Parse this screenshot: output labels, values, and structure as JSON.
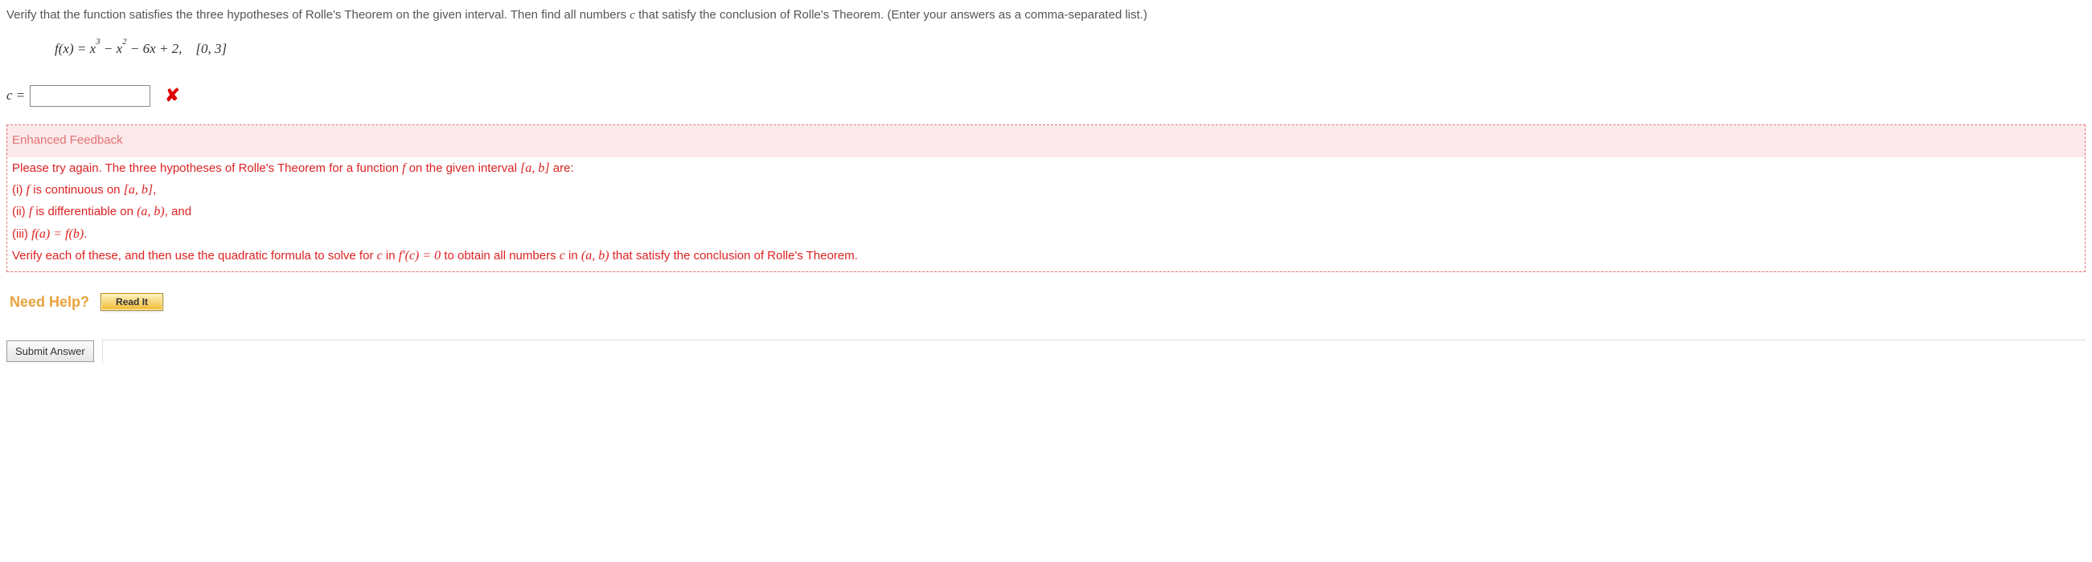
{
  "problem": {
    "text_line1": "Verify that the function satisfies the three hypotheses of Rolle's Theorem on the given interval. Then find all numbers ",
    "text_line2": " that satisfy the conclusion of Rolle's Theorem. (Enter your answers as a comma-separated list.)",
    "c_var": "c",
    "formula_f": "f",
    "formula_x": "x",
    "formula_body": "f(x) = x³ − x² − 6x + 2,    [0, 3]"
  },
  "answer": {
    "c_label": "c =",
    "value": "",
    "incorrect_mark": "✘"
  },
  "feedback": {
    "title": "Enhanced Feedback",
    "line1_a": "Please try again. The three hypotheses of Rolle's Theorem for a function ",
    "line1_f": "f",
    "line1_b": " on the given interval  ",
    "line1_ab": "[a, b]",
    "line1_c": "  are:",
    "line2_a": "(i)  ",
    "line2_f": "f",
    "line2_b": "  is continuous on  ",
    "line2_ab": "[a, b]",
    "line2_c": ",",
    "line3_a": "(ii)  ",
    "line3_f": "f",
    "line3_b": "  is differentiable on  ",
    "line3_ab": "(a, b)",
    "line3_c": ",  and",
    "line4_a": "(iii)  ",
    "line4_math": "f(a) = f(b)",
    "line4_c": ".",
    "line5_a": "Verify each of these, and then use the quadratic formula to solve for  ",
    "line5_c": "c",
    "line5_b": "  in  ",
    "line5_fc": "f'(c) = 0",
    "line5_d": "  to obtain all numbers ",
    "line5_c2": "c",
    "line5_e": " in  ",
    "line5_ab": "(a, b)",
    "line5_g": "  that satisfy the conclusion of Rolle's Theorem."
  },
  "help": {
    "label": "Need Help?",
    "read_it": "Read It"
  },
  "submit": {
    "label": "Submit Answer"
  },
  "colors": {
    "text": "#555555",
    "feedback_border": "#e57373",
    "feedback_title": "#e57373",
    "feedback_text": "#d22222",
    "help_label": "#e8a33d",
    "incorrect": "#dd0000"
  }
}
